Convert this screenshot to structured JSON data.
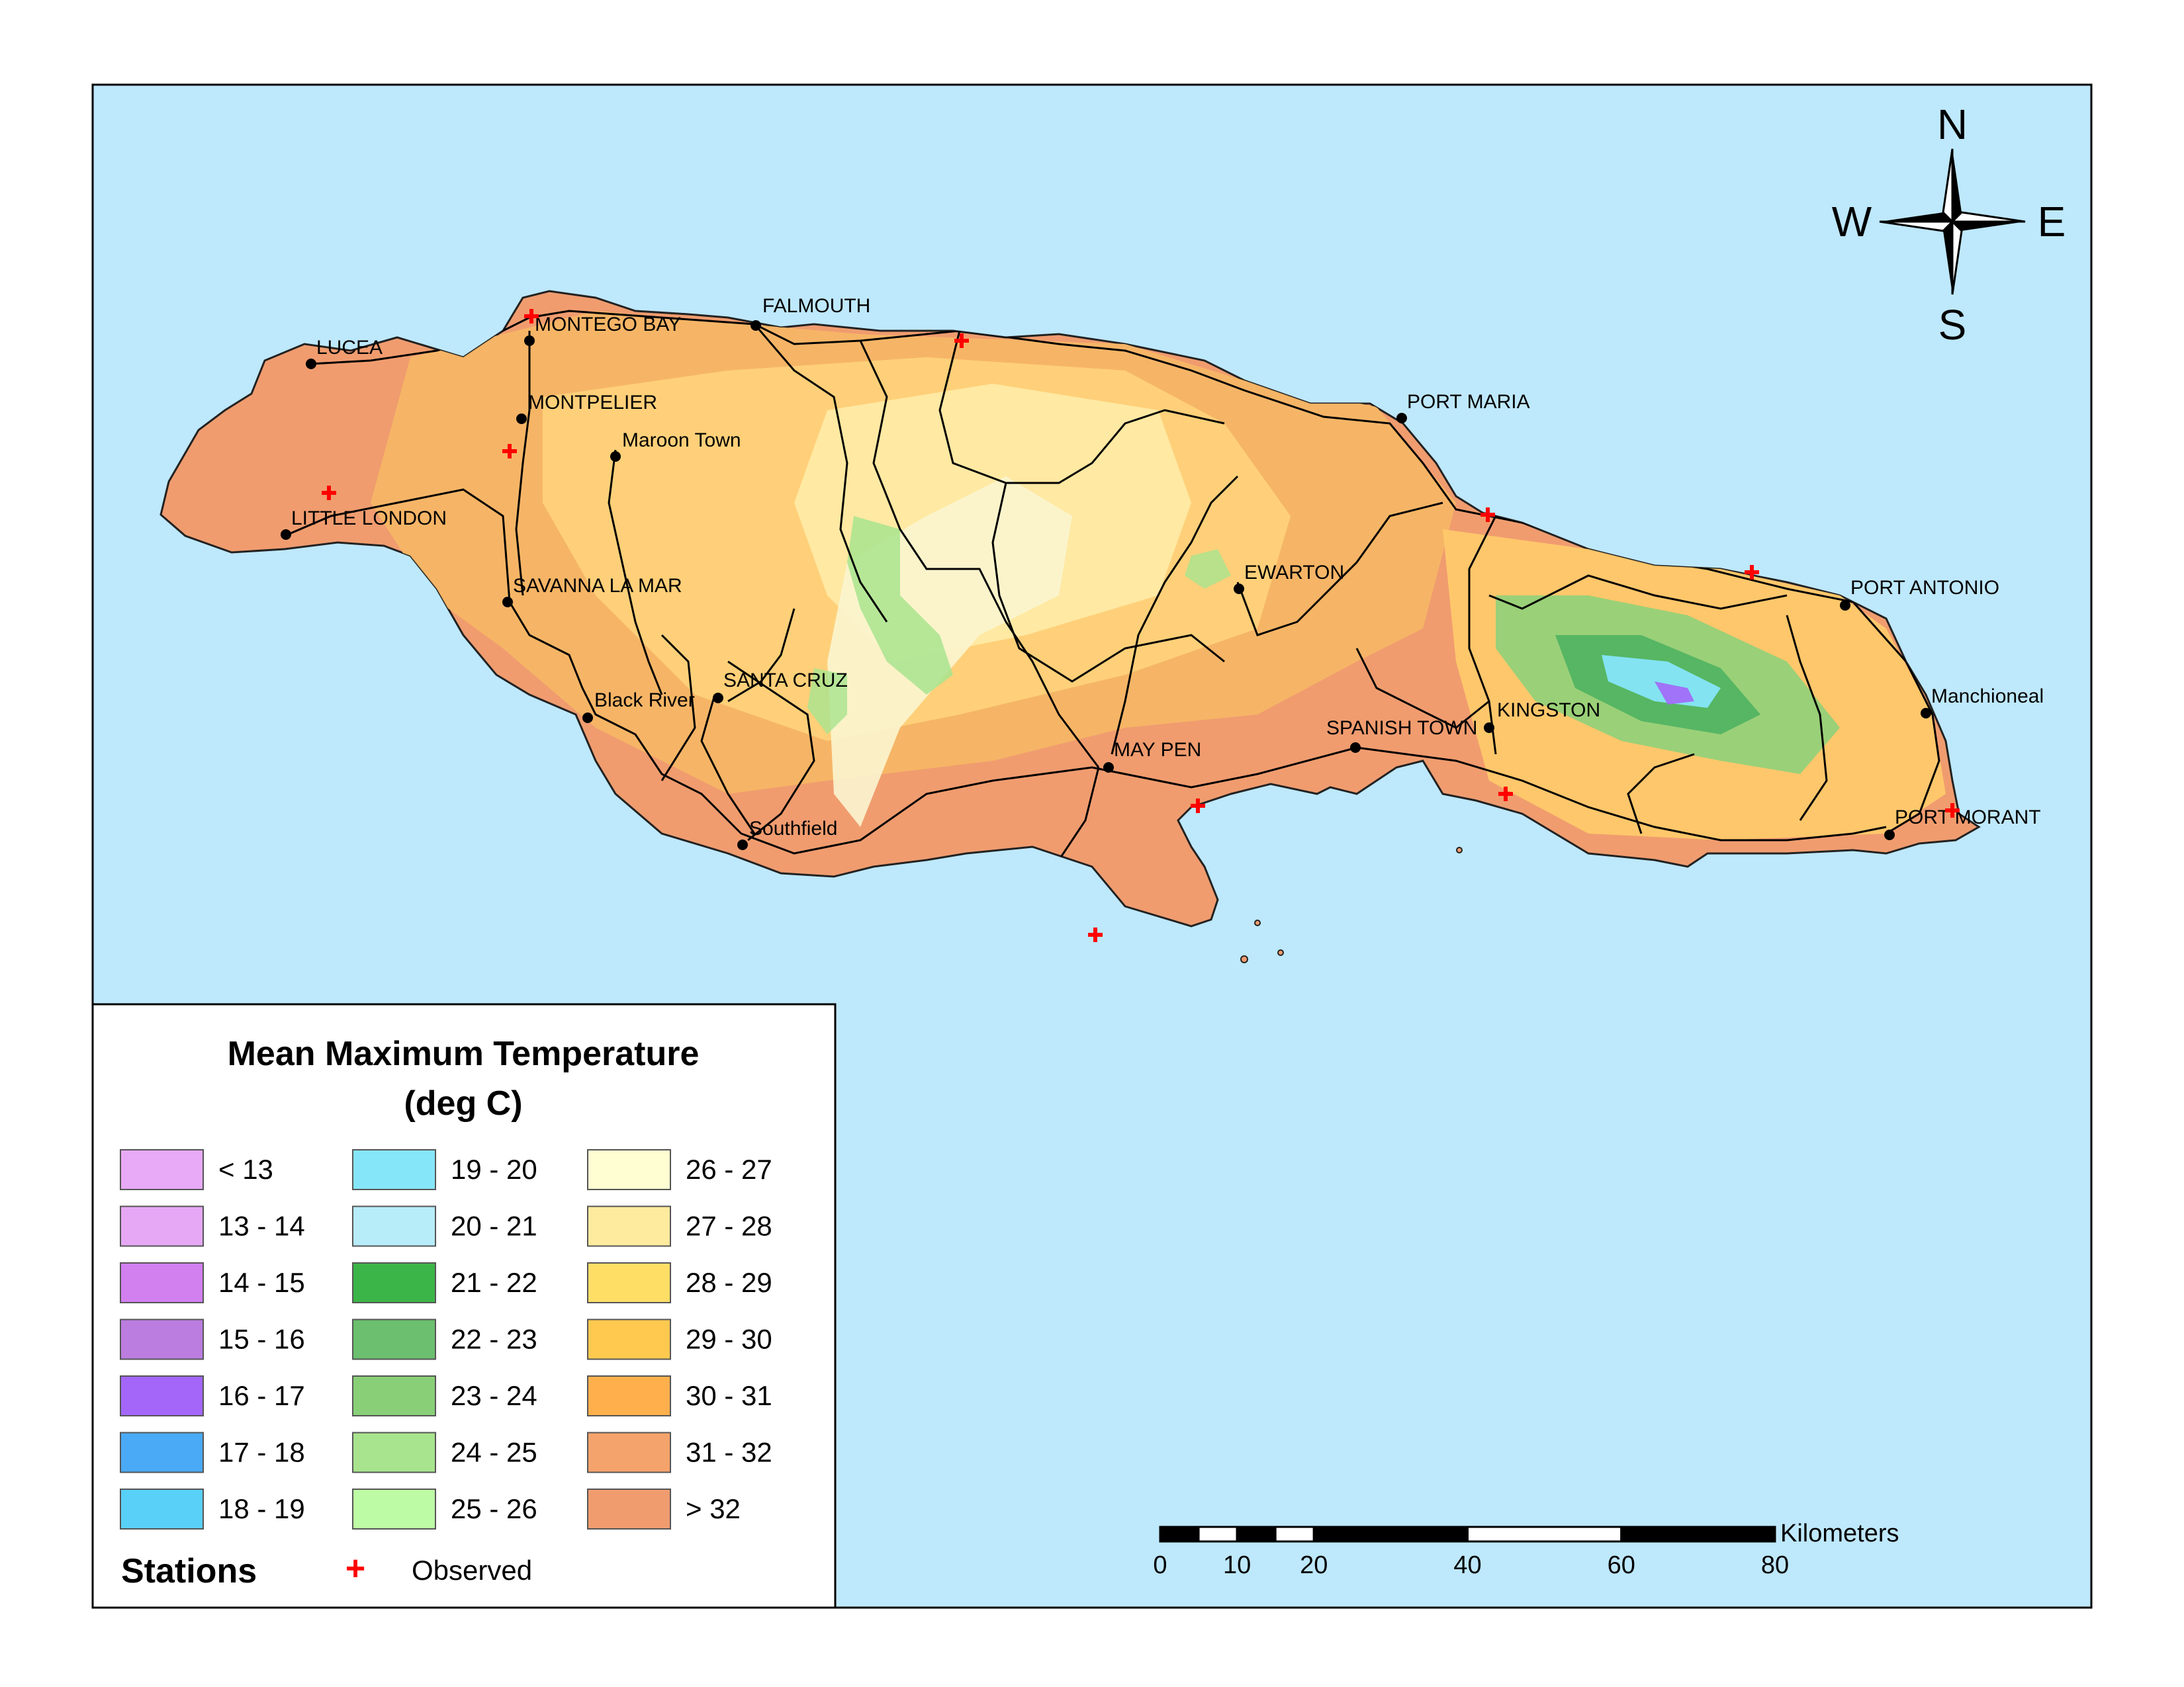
{
  "legend": {
    "title_line1": "Mean Maximum Temperature",
    "title_line2": "(deg C)",
    "classes": [
      {
        "label": "< 13",
        "color": "#e8aaf7"
      },
      {
        "label": "13 - 14",
        "color": "#e6a8f5"
      },
      {
        "label": "14 - 15",
        "color": "#d27ff0"
      },
      {
        "label": "15 - 16",
        "color": "#bb7ddf"
      },
      {
        "label": "16 - 17",
        "color": "#a366f8"
      },
      {
        "label": "17 - 18",
        "color": "#4aaaf5"
      },
      {
        "label": "18 - 19",
        "color": "#58d0f8"
      },
      {
        "label": "19 - 20",
        "color": "#86e6f9"
      },
      {
        "label": "20 - 21",
        "color": "#b7ecf9"
      },
      {
        "label": "21 - 22",
        "color": "#3cb548"
      },
      {
        "label": "22 - 23",
        "color": "#6bbf6e"
      },
      {
        "label": "23 - 24",
        "color": "#88cf77"
      },
      {
        "label": "24 - 25",
        "color": "#a8e48e"
      },
      {
        "label": "25 - 26",
        "color": "#bdfca4"
      },
      {
        "label": "26 - 27",
        "color": "#fffdd2"
      },
      {
        "label": "27 - 28",
        "color": "#ffeb9e"
      },
      {
        "label": "28 - 29",
        "color": "#ffde66"
      },
      {
        "label": "29 - 30",
        "color": "#ffc94f"
      },
      {
        "label": "30 - 31",
        "color": "#ffb04d"
      },
      {
        "label": "31 - 32",
        "color": "#f5a36c"
      },
      {
        "label": "> 32",
        "color": "#f09c6f"
      }
    ],
    "stations_heading": "Stations",
    "observed_label": "Observed",
    "observed_symbol": "+"
  },
  "compass": {
    "north": "N",
    "south": "S",
    "east": "E",
    "west": "W"
  },
  "scale_bar": {
    "unit": "Kilometers",
    "ticks": [
      "0",
      "10",
      "20",
      "40",
      "60",
      "80"
    ]
  },
  "towns": [
    "LUCEA",
    "MONTEGO BAY",
    "FALMOUTH",
    "MONTPELIER",
    "Maroon Town",
    "LITTLE LONDON",
    "SAVANNA LA MAR",
    "Black River",
    "SANTA CRUZ",
    "Southfield",
    "MAY PEN",
    "EWARTON",
    "PORT MARIA",
    "SPANISH TOWN",
    "KINGSTON",
    "PORT ANTONIO",
    "Manchioneal",
    "PORT MORANT"
  ],
  "colors": {
    "sea": "#bee8fc",
    "lowland": "#f09c6f",
    "observed_marker": "#ff0000",
    "road": "#000000"
  }
}
